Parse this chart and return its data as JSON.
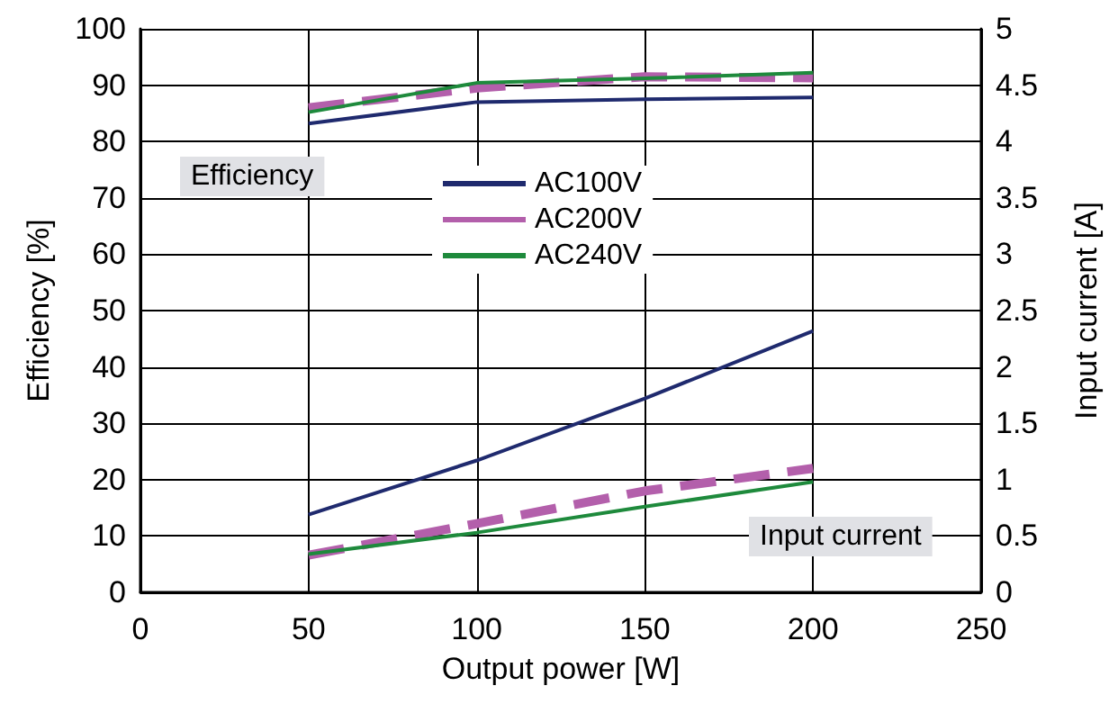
{
  "chart_data": {
    "type": "line",
    "xlabel": "Output power [W]",
    "ylabel": "Efficiency [%]",
    "y2label": "Input current [A]",
    "x": [
      50,
      100,
      150,
      200
    ],
    "xlim": [
      0,
      250
    ],
    "xticks": [
      0,
      50,
      100,
      150,
      200,
      250
    ],
    "ylim": [
      0,
      100
    ],
    "yticks": [
      0,
      10,
      20,
      30,
      40,
      50,
      60,
      70,
      80,
      90,
      100
    ],
    "y2lim": [
      0,
      5
    ],
    "y2ticks": [
      0,
      0.5,
      1,
      1.5,
      2,
      2.5,
      3,
      3.5,
      4,
      4.5,
      5
    ],
    "series": [
      {
        "name": "AC100V",
        "color": "#1f2a6e",
        "values": [
          83.2,
          87,
          87.5,
          87.8
        ],
        "line_style": "solid"
      },
      {
        "name": "AC200V",
        "color": "#b35fab",
        "values": [
          86,
          89.5,
          91.5,
          91.3
        ],
        "line_style": "dashed"
      },
      {
        "name": "AC240V",
        "color": "#1e8a3c",
        "values": [
          85.2,
          90.4,
          91.2,
          92.2
        ],
        "line_style": "solid"
      },
      {
        "color": "#1f2a6e",
        "values": [
          0.69,
          1.17,
          1.72,
          2.32
        ],
        "axis": "y2",
        "line_style": "solid"
      },
      {
        "color": "#b35fab",
        "values": [
          0.33,
          0.61,
          0.9,
          1.1
        ],
        "axis": "y2",
        "line_style": "dashed"
      },
      {
        "color": "#1e8a3c",
        "values": [
          0.34,
          0.53,
          0.76,
          0.98
        ],
        "axis": "y2",
        "line_style": "solid"
      }
    ],
    "annotations": [
      "Efficiency",
      "Input current"
    ],
    "grid": true,
    "legend": "top",
    "marker": "none"
  }
}
